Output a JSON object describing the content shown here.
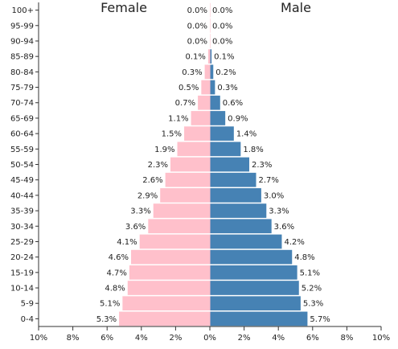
{
  "chart_data": {
    "type": "bar",
    "orientation": "horizontal-population-pyramid",
    "left_title": "Female",
    "right_title": "Male",
    "categories": [
      "0-4",
      "5-9",
      "10-14",
      "15-19",
      "20-24",
      "25-29",
      "30-34",
      "35-39",
      "40-44",
      "45-49",
      "50-54",
      "55-59",
      "60-64",
      "65-69",
      "70-74",
      "75-79",
      "80-84",
      "85-89",
      "90-94",
      "95-99",
      "100+"
    ],
    "series": [
      {
        "name": "Female",
        "color": "#ffc0cb",
        "values": [
          5.3,
          5.1,
          4.8,
          4.7,
          4.6,
          4.1,
          3.6,
          3.3,
          2.9,
          2.6,
          2.3,
          1.9,
          1.5,
          1.1,
          0.7,
          0.5,
          0.3,
          0.1,
          0.0,
          0.0,
          0.0
        ]
      },
      {
        "name": "Male",
        "color": "#4682b4",
        "values": [
          5.7,
          5.3,
          5.2,
          5.1,
          4.8,
          4.2,
          3.6,
          3.3,
          3.0,
          2.7,
          2.3,
          1.8,
          1.4,
          0.9,
          0.6,
          0.3,
          0.2,
          0.1,
          0.0,
          0.0,
          0.0
        ]
      }
    ],
    "value_labels": {
      "female": [
        "5.3%",
        "5.1%",
        "4.8%",
        "4.7%",
        "4.6%",
        "4.1%",
        "3.6%",
        "3.3%",
        "2.9%",
        "2.6%",
        "2.3%",
        "1.9%",
        "1.5%",
        "1.1%",
        "0.7%",
        "0.5%",
        "0.3%",
        "0.1%",
        "0.0%",
        "0.0%",
        "0.0%"
      ],
      "male": [
        "5.7%",
        "5.3%",
        "5.2%",
        "5.1%",
        "4.8%",
        "4.2%",
        "3.6%",
        "3.3%",
        "3.0%",
        "2.7%",
        "2.3%",
        "1.8%",
        "1.4%",
        "0.9%",
        "0.6%",
        "0.3%",
        "0.2%",
        "0.1%",
        "0.0%",
        "0.0%",
        "0.0%"
      ]
    },
    "x_ticks": [
      "10%",
      "8%",
      "6%",
      "4%",
      "2%",
      "0%",
      "2%",
      "4%",
      "6%",
      "8%",
      "10%"
    ],
    "x_range": [
      -10,
      10
    ],
    "grid": false
  }
}
